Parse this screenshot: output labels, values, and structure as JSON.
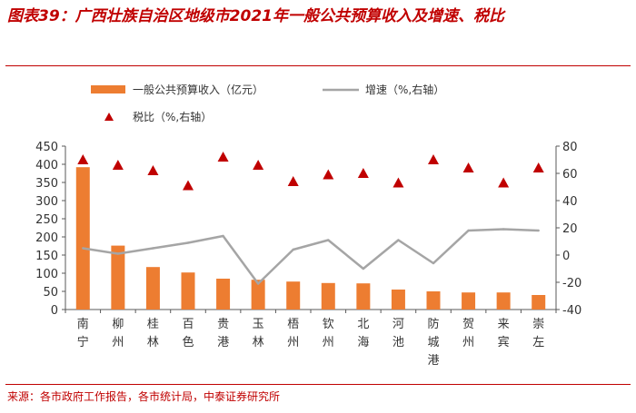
{
  "figure": {
    "title": "图表39：广西壮族自治区地级市2021年一般公共预算收入及增速、税比",
    "source": "来源：各市政府工作报告，各市统计局，中泰证券研究所"
  },
  "colors": {
    "bar": "#ED7D31",
    "line": "#A5A5A5",
    "marker": "#C00000",
    "title": "#C00000",
    "axis": "#595959"
  },
  "chart_data": {
    "type": "bar",
    "categories": [
      "南宁",
      "柳州",
      "桂林",
      "百色",
      "贵港",
      "玉林",
      "梧州",
      "钦州",
      "北海",
      "河池",
      "防城港",
      "贺州",
      "来宾",
      "崇左"
    ],
    "series": [
      {
        "name": "一般公共预算收入（亿元）",
        "type": "bar",
        "axis": "left",
        "values": [
          392,
          176,
          117,
          102,
          85,
          82,
          77,
          73,
          72,
          55,
          50,
          47,
          47,
          40
        ]
      },
      {
        "name": "增速（%,右轴）",
        "type": "line",
        "axis": "right",
        "values": [
          5,
          1,
          5,
          9,
          14,
          -21,
          4,
          11,
          -10,
          11,
          -6,
          18,
          19,
          18
        ]
      },
      {
        "name": "税比（%,右轴）",
        "type": "scatter",
        "axis": "right",
        "values": [
          70,
          66,
          62,
          51,
          72,
          66,
          54,
          59,
          60,
          53,
          70,
          64,
          53,
          64
        ]
      }
    ],
    "yleft": {
      "lim": [
        0,
        450
      ],
      "ticks": [
        0,
        50,
        100,
        150,
        200,
        250,
        300,
        350,
        400,
        450
      ]
    },
    "yright": {
      "lim": [
        -40,
        80
      ],
      "ticks": [
        -40,
        -20,
        0,
        20,
        40,
        60,
        80
      ]
    },
    "grid": false,
    "legend_position": "top-left"
  }
}
